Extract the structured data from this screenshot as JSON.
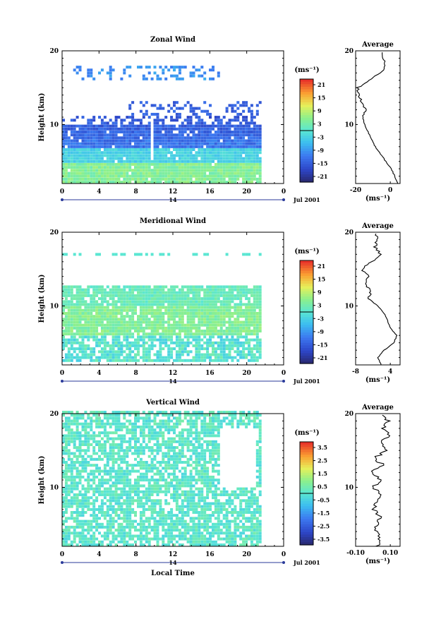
{
  "chart_data": [
    {
      "type": "heatmap",
      "title": "Zonal Wind",
      "ylabel": "Height (km)",
      "xticks": [
        "0",
        "4",
        "8",
        "12",
        "16",
        "20",
        "0"
      ],
      "yticks": [
        "20",
        "10"
      ],
      "ylim": [
        2,
        20
      ],
      "xlim": [
        0,
        24
      ],
      "day_label": "14",
      "month_label": "Jul 2001",
      "colorbar": {
        "unit": "(ms⁻¹)",
        "ticks": [
          "21",
          "15",
          "9",
          "3",
          "-3",
          "-9",
          "-15",
          "-21"
        ]
      },
      "average": {
        "title": "Average",
        "xticks": [
          "-20",
          "0"
        ],
        "xlabel": "(ms⁻¹)",
        "yticks": [
          "20",
          "10"
        ],
        "xlim": [
          -20,
          5
        ],
        "profile": [
          [
            2,
            4
          ],
          [
            3,
            2
          ],
          [
            4,
            0
          ],
          [
            5,
            -3
          ],
          [
            6,
            -6
          ],
          [
            7,
            -9
          ],
          [
            8,
            -11
          ],
          [
            9,
            -13
          ],
          [
            10,
            -15
          ],
          [
            11,
            -16
          ],
          [
            12,
            -14
          ],
          [
            13,
            -17
          ],
          [
            14,
            -18
          ],
          [
            15,
            -19
          ],
          [
            16,
            -12
          ],
          [
            17,
            -6
          ],
          [
            18,
            -3
          ],
          [
            19,
            -5
          ],
          [
            20,
            -4
          ]
        ]
      },
      "field": "zonal"
    },
    {
      "type": "heatmap",
      "title": "Meridional Wind",
      "ylabel": "Height (km)",
      "xticks": [
        "0",
        "4",
        "8",
        "12",
        "16",
        "20",
        "0"
      ],
      "yticks": [
        "20",
        "10"
      ],
      "ylim": [
        2,
        20
      ],
      "xlim": [
        0,
        24
      ],
      "day_label": "14",
      "month_label": "Jul 2001",
      "colorbar": {
        "unit": "(ms⁻¹)",
        "ticks": [
          "21",
          "15",
          "9",
          "3",
          "-3",
          "-9",
          "-15",
          "-21"
        ]
      },
      "average": {
        "title": "Average",
        "xticks": [
          "-8",
          "4"
        ],
        "xlabel": "(ms⁻¹)",
        "yticks": [
          "20",
          "10"
        ],
        "xlim": [
          -9,
          5
        ],
        "profile": [
          [
            2,
            -1
          ],
          [
            3,
            -2
          ],
          [
            4,
            0
          ],
          [
            5,
            3
          ],
          [
            6,
            4
          ],
          [
            7,
            2
          ],
          [
            8,
            1
          ],
          [
            9,
            0
          ],
          [
            10,
            -2
          ],
          [
            11,
            -5
          ],
          [
            12,
            -4
          ],
          [
            13,
            -6
          ],
          [
            14,
            -5
          ],
          [
            15,
            -7
          ],
          [
            16,
            -4
          ],
          [
            17,
            -1
          ],
          [
            18,
            -3
          ],
          [
            19,
            -2
          ],
          [
            20,
            -3
          ]
        ]
      },
      "field": "meridional"
    },
    {
      "type": "heatmap",
      "title": "Vertical Wind",
      "ylabel": "Height (km)",
      "xlabel": "Local Time",
      "xticks": [
        "0",
        "4",
        "8",
        "12",
        "16",
        "20",
        "0"
      ],
      "yticks": [
        "20",
        "10"
      ],
      "ylim": [
        2,
        20
      ],
      "xlim": [
        0,
        24
      ],
      "day_label": "14",
      "month_label": "Jul 2001",
      "colorbar": {
        "unit": "(ms⁻¹)",
        "ticks": [
          "3.5",
          "2.5",
          "1.5",
          "0.5",
          "-0.5",
          "-1.5",
          "-2.5",
          "-3.5"
        ]
      },
      "average": {
        "title": "Average",
        "xticks": [
          "-0.10",
          "0.10"
        ],
        "xlabel": "(ms⁻¹)",
        "yticks": [
          "20",
          "10"
        ],
        "xlim": [
          -0.12,
          0.12
        ],
        "profile": [
          [
            2,
            0.0
          ],
          [
            3,
            0.01
          ],
          [
            4,
            -0.01
          ],
          [
            5,
            0.0
          ],
          [
            6,
            0.01
          ],
          [
            7,
            -0.02
          ],
          [
            8,
            0.0
          ],
          [
            9,
            0.02
          ],
          [
            10,
            -0.03
          ],
          [
            11,
            0.02
          ],
          [
            12,
            -0.04
          ],
          [
            13,
            0.03
          ],
          [
            14,
            -0.02
          ],
          [
            15,
            0.05
          ],
          [
            16,
            0.01
          ],
          [
            17,
            0.06
          ],
          [
            18,
            0.03
          ],
          [
            19,
            0.06
          ],
          [
            20,
            0.02
          ]
        ]
      },
      "field": "vertical"
    }
  ]
}
